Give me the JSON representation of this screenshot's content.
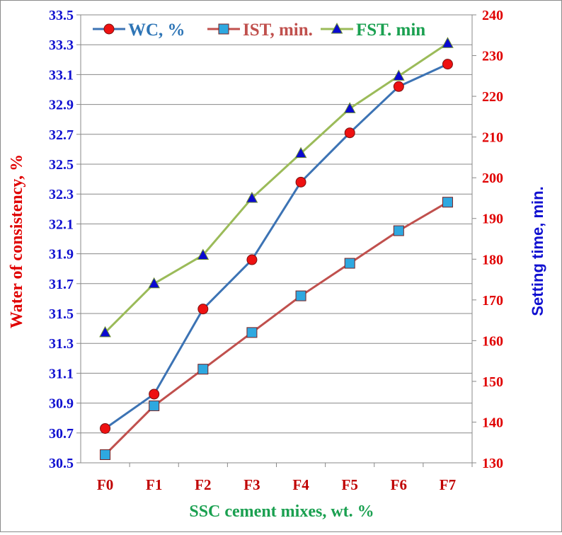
{
  "chart_data": {
    "type": "line",
    "categories": [
      "F0",
      "F1",
      "F2",
      "F3",
      "F4",
      "F5",
      "F6",
      "F7"
    ],
    "xlabel": "SSC cement mixes, wt. %",
    "ylabel_left": "Water of consistency,  %",
    "ylabel_right": "Setting time, min.",
    "ylim_left": [
      30.5,
      33.5
    ],
    "ylim_right": [
      130,
      240
    ],
    "yticks_left": [
      "30.5",
      "30.7",
      "30.9",
      "31.1",
      "31.3",
      "31.5",
      "31.7",
      "31.9",
      "32.1",
      "32.3",
      "32.5",
      "32.7",
      "32.9",
      "33.1",
      "33.3",
      "33.5"
    ],
    "yticks_right": [
      "130",
      "140",
      "150",
      "160",
      "170",
      "180",
      "190",
      "200",
      "210",
      "220",
      "230",
      "240"
    ],
    "grid": true,
    "legend_position": "top",
    "series": [
      {
        "name": "WC, %",
        "axis": "left",
        "color": "#3c73b4",
        "marker": "circle",
        "marker_color": "#ee1111",
        "values": [
          30.73,
          30.96,
          31.53,
          31.86,
          32.38,
          32.71,
          33.02,
          33.17
        ]
      },
      {
        "name": "IST, min.",
        "axis": "right",
        "color": "#c0504d",
        "marker": "square",
        "marker_color": "#2ea8e0",
        "values": [
          132,
          144,
          153,
          162,
          171,
          179,
          187,
          194
        ]
      },
      {
        "name": "FST. min",
        "axis": "right",
        "color": "#9bbb59",
        "marker": "triangle",
        "marker_color": "#0a0ad0",
        "values": [
          162,
          174,
          181,
          195,
          206,
          217,
          225,
          233
        ]
      }
    ],
    "legend_colors": [
      "#2e75b6",
      "#c0504d",
      "#1aa050"
    ]
  }
}
